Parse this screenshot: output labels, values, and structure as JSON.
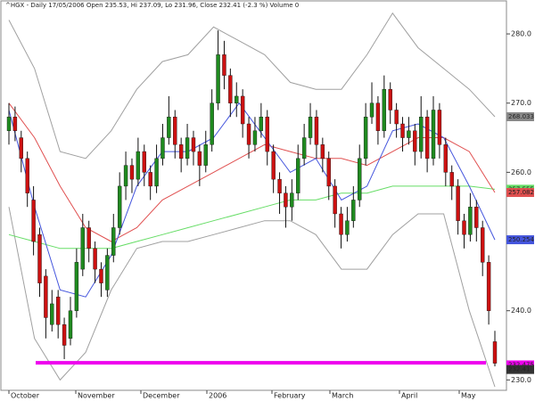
{
  "chart_data": {
    "type": "candlestick",
    "title": "^HGX - Daily 17/05/2006 Open 235.53, Hi 237.09, Lo 231.96, Close 232.41 (-2.3 %) Volume 0",
    "months": [
      "October",
      "November",
      "December",
      "2006",
      "February",
      "March",
      "April",
      "May"
    ],
    "candles": [
      [
        266,
        270,
        264,
        268
      ],
      [
        268,
        269.5,
        264.5,
        266
      ],
      [
        265,
        266,
        260,
        262
      ],
      [
        262,
        263,
        255,
        257
      ],
      [
        256,
        258,
        248,
        250
      ],
      [
        251,
        252,
        242,
        244
      ],
      [
        245,
        246,
        236,
        239
      ],
      [
        238,
        243,
        237,
        241
      ],
      [
        242,
        243,
        236,
        238
      ],
      [
        238,
        239,
        233,
        235
      ],
      [
        236,
        242,
        235,
        240
      ],
      [
        240,
        249,
        239,
        247
      ],
      [
        246,
        254,
        245,
        252
      ],
      [
        252,
        253,
        247,
        249
      ],
      [
        249,
        250,
        244,
        246
      ],
      [
        246,
        247,
        242,
        244
      ],
      [
        243,
        249,
        242,
        248
      ],
      [
        248,
        254,
        247,
        252
      ],
      [
        252,
        260,
        251,
        258
      ],
      [
        258,
        263,
        256,
        261
      ],
      [
        261,
        262,
        257,
        259
      ],
      [
        259,
        265,
        258,
        263
      ],
      [
        263,
        264,
        258,
        260
      ],
      [
        260,
        261,
        256,
        258
      ],
      [
        258,
        264,
        257,
        262
      ],
      [
        262,
        267,
        261,
        265
      ],
      [
        265,
        271,
        264,
        268
      ],
      [
        268,
        269,
        262,
        264
      ],
      [
        264,
        265,
        260,
        262
      ],
      [
        262,
        267,
        261,
        265
      ],
      [
        265,
        266,
        261,
        263
      ],
      [
        263,
        264,
        258,
        261
      ],
      [
        261,
        266,
        260,
        264
      ],
      [
        264,
        272,
        263,
        270
      ],
      [
        270,
        280.5,
        269,
        277
      ],
      [
        277,
        279,
        272,
        274
      ],
      [
        274,
        275,
        268,
        270
      ],
      [
        270,
        273,
        268,
        271
      ],
      [
        271,
        272,
        265,
        267
      ],
      [
        267,
        268,
        262,
        264
      ],
      [
        264,
        268,
        263,
        266
      ],
      [
        266,
        270,
        265,
        268
      ],
      [
        268,
        269,
        261,
        263
      ],
      [
        263,
        264,
        257,
        259
      ],
      [
        259,
        260,
        254,
        257
      ],
      [
        257,
        258,
        252,
        255
      ],
      [
        255,
        259,
        253,
        257
      ],
      [
        257,
        264,
        256,
        262
      ],
      [
        262,
        267,
        261,
        265
      ],
      [
        265,
        270,
        264,
        268
      ],
      [
        268,
        269,
        262,
        264
      ],
      [
        264,
        265,
        260,
        262
      ],
      [
        262,
        263,
        256,
        258
      ],
      [
        258,
        259,
        252,
        254
      ],
      [
        254,
        255,
        249,
        251
      ],
      [
        251,
        255,
        250,
        253
      ],
      [
        253,
        258,
        252,
        256
      ],
      [
        256,
        264,
        255,
        262
      ],
      [
        262,
        270,
        261,
        268
      ],
      [
        268,
        273,
        267,
        270
      ],
      [
        270,
        271,
        264,
        266
      ],
      [
        266,
        274,
        265,
        272
      ],
      [
        272,
        273,
        267,
        269
      ],
      [
        269,
        270,
        265,
        267
      ],
      [
        267,
        268,
        263,
        265
      ],
      [
        265,
        268,
        264,
        266
      ],
      [
        266,
        267,
        261,
        263
      ],
      [
        263,
        271,
        262,
        268
      ],
      [
        268,
        269,
        260,
        262
      ],
      [
        262,
        271,
        261,
        269
      ],
      [
        269,
        270,
        262,
        264
      ],
      [
        264,
        265,
        258,
        260
      ],
      [
        260,
        261,
        256,
        258
      ],
      [
        258,
        259,
        251,
        253
      ],
      [
        253,
        254,
        249,
        251
      ],
      [
        251,
        257,
        250,
        255
      ],
      [
        255,
        256,
        250,
        252
      ],
      [
        252,
        253,
        245,
        247
      ],
      [
        247,
        248,
        238,
        240
      ],
      [
        235.53,
        237.09,
        231.96,
        232.41
      ]
    ],
    "up_color": "#1f8a1f",
    "down_color": "#cc1111",
    "lines": [
      {
        "color": "#a0a0a0",
        "values": [
          282,
          275,
          263,
          262,
          266,
          272,
          276,
          277,
          281,
          279,
          277,
          273,
          272,
          272,
          277,
          283,
          278,
          275,
          272,
          268.033
        ]
      },
      {
        "color": "#a0a0a0",
        "values": [
          255,
          236,
          230,
          234,
          243,
          249,
          250,
          250,
          251,
          252,
          253,
          253,
          251,
          246,
          246,
          251,
          254,
          254,
          240,
          229
        ]
      },
      {
        "color": "#66dd66",
        "values": [
          251,
          250,
          249,
          249,
          249,
          250,
          251,
          252,
          253,
          254,
          255,
          256,
          256,
          257,
          257,
          258,
          258,
          258,
          258,
          257.555
        ]
      },
      {
        "color": "#e05050",
        "values": [
          270,
          265,
          258,
          252,
          250,
          252,
          256,
          258,
          260,
          262,
          264,
          263,
          262,
          262,
          261,
          263,
          265,
          265,
          263,
          257.082
        ]
      },
      {
        "color": "#4455dd",
        "values": [
          269,
          255,
          243,
          242,
          248,
          258,
          263,
          263,
          265,
          270,
          265,
          260,
          262,
          256,
          258,
          266,
          267,
          265,
          258,
          250.254
        ]
      }
    ],
    "support_level": 232.475,
    "support_color": "#ee00ee",
    "ylim": [
      228.5,
      284.9
    ],
    "yticks": [
      {
        "value": 230,
        "label": "230.0"
      },
      {
        "value": 240,
        "label": "240.0"
      },
      {
        "value": 250,
        "label": "250.0"
      },
      {
        "value": 260,
        "label": "260.0"
      },
      {
        "value": 270,
        "label": "270.0"
      },
      {
        "value": 280,
        "label": "280.0"
      }
    ]
  }
}
